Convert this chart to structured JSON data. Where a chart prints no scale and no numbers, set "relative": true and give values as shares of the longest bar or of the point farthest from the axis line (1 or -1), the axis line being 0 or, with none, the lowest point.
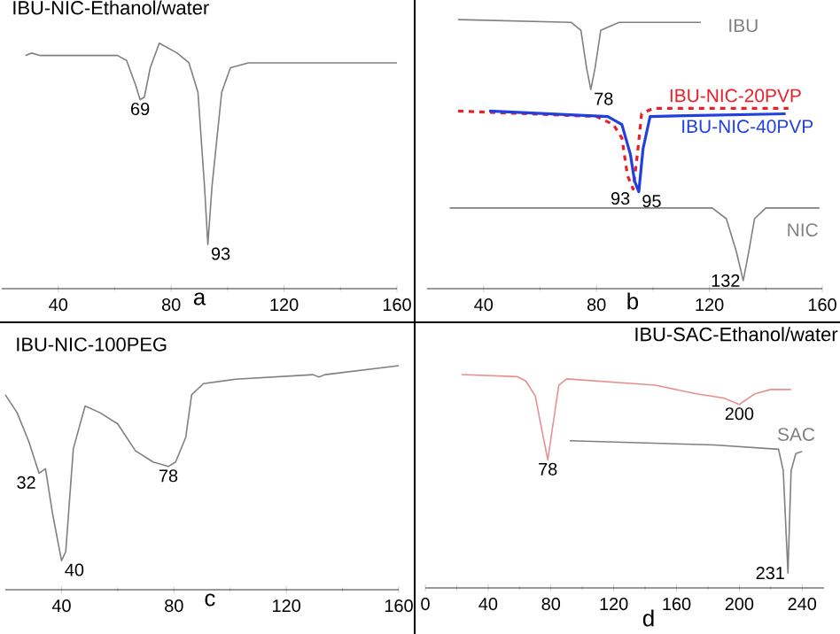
{
  "chart_data": [
    {
      "type": "line",
      "relative": true,
      "title": "IBU-NIC-Ethanol/water",
      "xlabel": "a",
      "xlim": [
        20,
        160
      ],
      "xticks": [
        40,
        80,
        120,
        160
      ],
      "series": [
        {
          "color": "#808080",
          "x": [
            28.4,
            30.5,
            33.7,
            61,
            64.2,
            67.4,
            69,
            70.5,
            72.6,
            75.8,
            82.1,
            86.3,
            89.5,
            91.8,
            93,
            94.5,
            97.9,
            101,
            107.4,
            160
          ],
          "values": [
            0.95,
            0.96,
            0.95,
            0.95,
            0.93,
            0.83,
            0.77,
            0.78,
            0.9,
            1.0,
            0.96,
            0.92,
            0.8,
            0.42,
            0.18,
            0.42,
            0.8,
            0.9,
            0.92,
            0.92
          ]
        }
      ],
      "annotations": [
        {
          "text": "69",
          "x": 69,
          "y": 0.77
        },
        {
          "text": "93",
          "x": 93,
          "y": 0.18
        }
      ]
    },
    {
      "type": "line",
      "relative": true,
      "xlabel": "b",
      "xlim": [
        20,
        160
      ],
      "xticks": [
        40,
        80,
        120,
        160
      ],
      "series": [
        {
          "name": "IBU",
          "color": "#808080",
          "x": [
            31,
            71,
            74.5,
            76.5,
            78,
            79.5,
            81.5,
            88,
            117
          ],
          "values": [
            1.0,
            0.99,
            0.96,
            0.82,
            0.74,
            0.82,
            0.96,
            0.99,
            0.99
          ]
        },
        {
          "name": "IBU-NIC-20PVP",
          "color": "#e8202a",
          "line_style": "dashed",
          "x": [
            31,
            80,
            86,
            89,
            91,
            93,
            94.5,
            96,
            100,
            148
          ],
          "values": [
            0.66,
            0.64,
            0.61,
            0.56,
            0.42,
            0.37,
            0.5,
            0.65,
            0.67,
            0.67
          ]
        },
        {
          "name": "IBU-NIC-40PVP",
          "color": "#2040e0",
          "x": [
            42,
            84,
            89,
            92,
            93.5,
            95,
            96.5,
            99,
            147
          ],
          "values": [
            0.66,
            0.64,
            0.61,
            0.5,
            0.4,
            0.36,
            0.52,
            0.64,
            0.65
          ]
        },
        {
          "name": "NIC",
          "color": "#808080",
          "x": [
            28,
            121,
            126,
            129.5,
            132,
            134,
            136,
            140,
            159
          ],
          "values": [
            0.3,
            0.3,
            0.26,
            0.14,
            0.03,
            0.14,
            0.26,
            0.3,
            0.3
          ]
        }
      ],
      "annotations": [
        {
          "text": "78",
          "x": 78,
          "y": 0.74
        },
        {
          "text": "93",
          "x": 93,
          "y": 0.37
        },
        {
          "text": "95",
          "x": 95,
          "y": 0.36
        },
        {
          "text": "132",
          "x": 132,
          "y": 0.03
        }
      ]
    },
    {
      "type": "line",
      "relative": true,
      "title": "IBU-NIC-100PEG",
      "xlabel": "c",
      "xlim": [
        20,
        160
      ],
      "xticks": [
        40,
        80,
        120,
        160
      ],
      "series": [
        {
          "color": "#808080",
          "x": [
            20,
            24.2,
            28.4,
            32,
            34.3,
            36.8,
            40,
            41.5,
            44.2,
            48.4,
            53.7,
            60,
            66.3,
            72.6,
            78,
            80.6,
            84.2,
            86.3,
            90.5,
            102,
            129.5,
            131.6,
            133.7,
            160
          ],
          "values": [
            0.87,
            0.79,
            0.66,
            0.52,
            0.54,
            0.34,
            0.13,
            0.17,
            0.63,
            0.82,
            0.79,
            0.74,
            0.62,
            0.57,
            0.55,
            0.57,
            0.68,
            0.87,
            0.92,
            0.94,
            0.96,
            0.95,
            0.96,
            1.0
          ]
        }
      ],
      "annotations": [
        {
          "text": "32",
          "x": 32,
          "y": 0.52
        },
        {
          "text": "40",
          "x": 40,
          "y": 0.13
        },
        {
          "text": "78",
          "x": 78,
          "y": 0.55
        }
      ]
    },
    {
      "type": "line",
      "relative": true,
      "title": "IBU-SAC-Ethanol/water",
      "xlabel": "d",
      "xlim": [
        0,
        254
      ],
      "xticks": [
        0,
        40,
        80,
        120,
        160,
        200,
        240
      ],
      "series": [
        {
          "color": "#e89090",
          "x": [
            23,
            58.7,
            64,
            70,
            74,
            78,
            81,
            85,
            90,
            146.5,
            172.7,
            190,
            200,
            210,
            220,
            233
          ],
          "values": [
            1.0,
            0.99,
            0.97,
            0.9,
            0.75,
            0.6,
            0.75,
            0.95,
            0.98,
            0.95,
            0.91,
            0.89,
            0.86,
            0.91,
            0.93,
            0.93
          ]
        },
        {
          "name": "SAC",
          "color": "#808080",
          "x": [
            92,
            184,
            225,
            228,
            231,
            233,
            236,
            240
          ],
          "values": [
            0.69,
            0.67,
            0.65,
            0.55,
            0.07,
            0.55,
            0.63,
            0.64
          ]
        }
      ],
      "annotations": [
        {
          "text": "78",
          "x": 78,
          "y": 0.6
        },
        {
          "text": "200",
          "x": 200,
          "y": 0.86
        },
        {
          "text": "231",
          "x": 231,
          "y": 0.07
        }
      ]
    }
  ]
}
